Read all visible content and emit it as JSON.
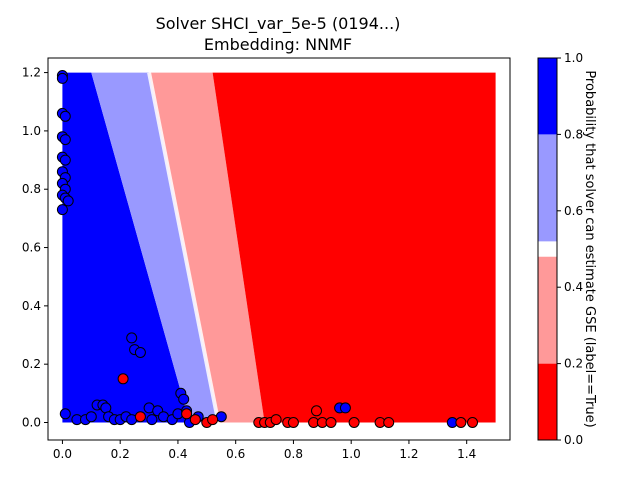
{
  "chart_data": {
    "type": "scatter",
    "title": "Solver SHCI_var_5e-5 (0194...)",
    "subtitle": "Embedding: NNMF",
    "xlabel": "",
    "ylabel": "",
    "xlim": [
      -0.05,
      1.55
    ],
    "ylim": [
      -0.06,
      1.25
    ],
    "x_ticks": [
      "0.0",
      "0.2",
      "0.4",
      "0.6",
      "0.8",
      "1.0",
      "1.2",
      "1.4"
    ],
    "y_ticks": [
      "0.0",
      "0.2",
      "0.4",
      "0.6",
      "0.8",
      "1.0",
      "1.2"
    ],
    "grid": false,
    "background_map": {
      "description_values": "predicted probability over grid x in [0,1.5], y in [0,1.2]",
      "x_range": [
        0,
        1.5
      ],
      "y_range": [
        0,
        1.2
      ],
      "band_boundaries_at_y0": [
        0.44,
        0.54,
        0.7
      ],
      "band_boundaries_at_y1_2": [
        0.1,
        0.3,
        0.52
      ],
      "band_colors": [
        "#0000ff",
        "#9999ff",
        "#ff9999",
        "#ff0000"
      ]
    },
    "colorbar": {
      "label": "Probability that solver can estimate GSE (label==True)",
      "ticks": [
        "0.0",
        "0.2",
        "0.4",
        "0.6",
        "0.8",
        "1.0"
      ],
      "stops": [
        {
          "from": 0.0,
          "to": 0.2,
          "color": "#ff0000"
        },
        {
          "from": 0.2,
          "to": 0.48,
          "color": "#ff9999"
        },
        {
          "from": 0.48,
          "to": 0.52,
          "color": "#ffffff"
        },
        {
          "from": 0.52,
          "to": 0.8,
          "color": "#9999ff"
        },
        {
          "from": 0.8,
          "to": 1.0,
          "color": "#0000ff"
        }
      ]
    },
    "series": [
      {
        "color": "#0000ff",
        "points": [
          [
            0.0,
            1.19
          ],
          [
            0.0,
            1.18
          ],
          [
            0.0,
            1.06
          ],
          [
            0.01,
            1.05
          ],
          [
            0.0,
            0.98
          ],
          [
            0.01,
            0.97
          ],
          [
            0.0,
            0.91
          ],
          [
            0.01,
            0.9
          ],
          [
            0.0,
            0.86
          ],
          [
            0.01,
            0.84
          ],
          [
            0.0,
            0.82
          ],
          [
            0.01,
            0.8
          ],
          [
            0.0,
            0.78
          ],
          [
            0.01,
            0.77
          ],
          [
            0.02,
            0.76
          ],
          [
            0.0,
            0.73
          ],
          [
            0.01,
            0.03
          ],
          [
            0.05,
            0.01
          ],
          [
            0.08,
            0.01
          ],
          [
            0.1,
            0.02
          ],
          [
            0.12,
            0.06
          ],
          [
            0.14,
            0.06
          ],
          [
            0.15,
            0.05
          ],
          [
            0.16,
            0.02
          ],
          [
            0.18,
            0.01
          ],
          [
            0.2,
            0.01
          ],
          [
            0.22,
            0.02
          ],
          [
            0.24,
            0.01
          ],
          [
            0.24,
            0.29
          ],
          [
            0.25,
            0.25
          ],
          [
            0.27,
            0.24
          ],
          [
            0.3,
            0.05
          ],
          [
            0.31,
            0.01
          ],
          [
            0.33,
            0.04
          ],
          [
            0.35,
            0.02
          ],
          [
            0.38,
            0.01
          ],
          [
            0.4,
            0.03
          ],
          [
            0.41,
            0.1
          ],
          [
            0.42,
            0.08
          ],
          [
            0.43,
            0.04
          ],
          [
            0.44,
            0.0
          ],
          [
            0.47,
            0.02
          ],
          [
            0.55,
            0.02
          ],
          [
            0.96,
            0.05
          ],
          [
            0.98,
            0.05
          ],
          [
            1.35,
            0.0
          ]
        ]
      },
      {
        "color": "#ff0000",
        "points": [
          [
            0.21,
            0.15
          ],
          [
            0.27,
            0.02
          ],
          [
            0.43,
            0.03
          ],
          [
            0.46,
            0.01
          ],
          [
            0.5,
            0.0
          ],
          [
            0.52,
            0.01
          ],
          [
            0.68,
            0.0
          ],
          [
            0.7,
            0.0
          ],
          [
            0.72,
            0.0
          ],
          [
            0.74,
            0.01
          ],
          [
            0.78,
            0.0
          ],
          [
            0.8,
            0.0
          ],
          [
            0.87,
            0.0
          ],
          [
            0.88,
            0.04
          ],
          [
            0.9,
            0.0
          ],
          [
            0.93,
            0.0
          ],
          [
            1.01,
            0.0
          ],
          [
            1.1,
            0.0
          ],
          [
            1.13,
            0.0
          ],
          [
            1.38,
            0.0
          ],
          [
            1.42,
            0.0
          ]
        ]
      }
    ]
  }
}
